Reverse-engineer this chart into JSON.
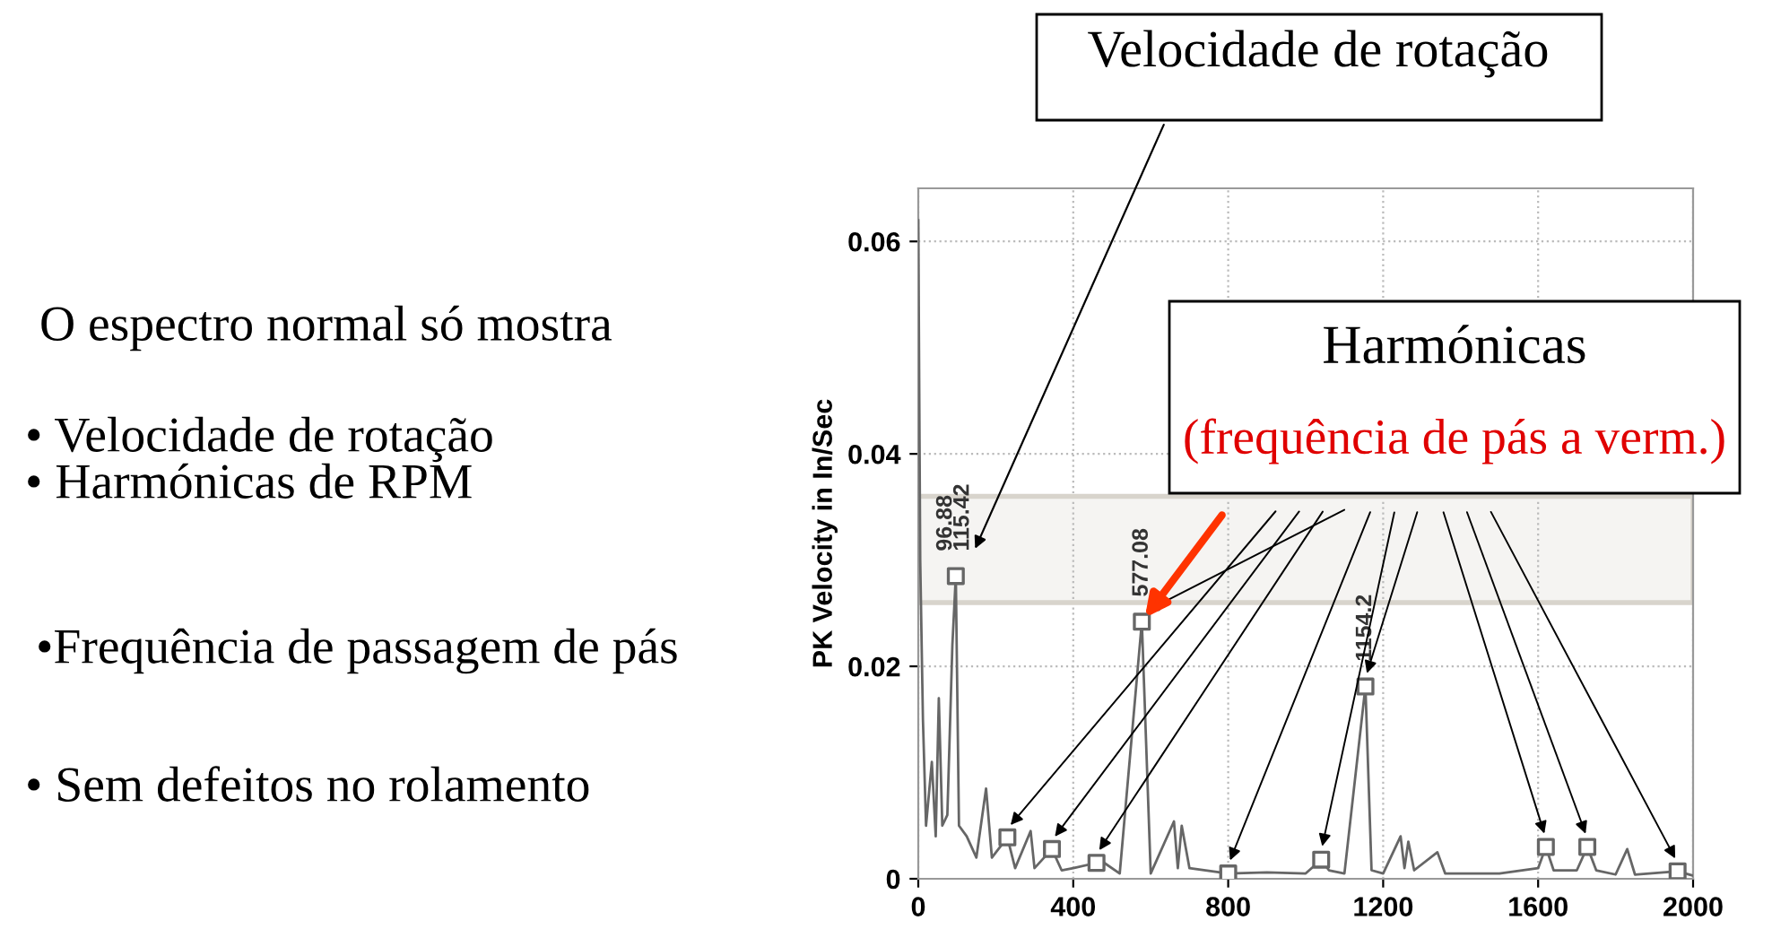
{
  "chart_data": {
    "type": "line",
    "ylabel": "PK Velocity in In/Sec",
    "xlim": [
      0,
      2000
    ],
    "ylim": [
      0,
      0.065
    ],
    "xticks": [
      0,
      400,
      800,
      1200,
      1600,
      2000
    ],
    "yticks": [
      0,
      0.02,
      0.04,
      0.06
    ],
    "grid": true,
    "series": [
      {
        "color": "#666666",
        "line_style": "solid",
        "x": [
          0,
          5,
          12,
          20,
          35,
          45,
          53,
          62,
          75,
          88,
          96.88,
          105,
          125,
          150,
          175,
          190,
          230,
          250,
          290,
          300,
          345,
          370,
          400,
          460,
          480,
          520,
          577.08,
          600,
          660,
          670,
          680,
          700,
          800,
          900,
          1000,
          1040,
          1060,
          1100,
          1154.2,
          1170,
          1200,
          1245,
          1255,
          1265,
          1280,
          1340,
          1360,
          1500,
          1600,
          1620,
          1640,
          1700,
          1727,
          1750,
          1800,
          1830,
          1850,
          1960,
          2000
        ],
        "values": [
          0.062,
          0.03,
          0.015,
          0.005,
          0.011,
          0.004,
          0.017,
          0.005,
          0.006,
          0.022,
          0.0285,
          0.005,
          0.004,
          0.002,
          0.0085,
          0.002,
          0.0039,
          0.001,
          0.0045,
          0.001,
          0.0028,
          0.0008,
          0.001,
          0.0015,
          0.0015,
          0.0005,
          0.0242,
          0.0005,
          0.0054,
          0.001,
          0.005,
          0.001,
          0.0005,
          0.0006,
          0.0005,
          0.0018,
          0.0008,
          0.0005,
          0.0181,
          0.0008,
          0.0005,
          0.004,
          0.001,
          0.0035,
          0.0008,
          0.0025,
          0.0005,
          0.0005,
          0.001,
          0.003,
          0.0008,
          0.0008,
          0.003,
          0.0008,
          0.0004,
          0.0028,
          0.0004,
          0.0007,
          0.0003
        ]
      },
      {
        "type": "scatter",
        "color": "#666666",
        "marker": "square",
        "x": [
          96.88,
          230,
          345,
          460,
          577.08,
          800,
          1040,
          1154.2,
          1620,
          1727,
          1960
        ],
        "values": [
          0.0285,
          0.0039,
          0.0028,
          0.0015,
          0.0242,
          0.0005,
          0.0018,
          0.0181,
          0.003,
          0.003,
          0.0007
        ]
      }
    ],
    "bands": [
      {
        "axis": "y",
        "from": 0.026,
        "to": 0.036,
        "color": "#d8d4cc"
      }
    ],
    "annotations": [
      "O espectro normal só mostra",
      "• Velocidade de rotação",
      "• Harmónicas de RPM",
      "•Frequência de passagem de pás",
      "• Sem defeitos no rolamento",
      "Velocidade de rotação",
      "Harmónicas",
      {
        "text": "(frequência de pás a verm.)",
        "x": 577.08,
        "y": 0.0242
      },
      {
        "text": "96.88",
        "x": 96.88,
        "y": 0.0285
      },
      {
        "text": "115.42",
        "x": 115.42,
        "y": 0.0285
      },
      {
        "text": "577.08",
        "x": 577.08,
        "y": 0.0242
      },
      {
        "text": "1154.2",
        "x": 1154.2,
        "y": 0.0181
      }
    ]
  }
}
